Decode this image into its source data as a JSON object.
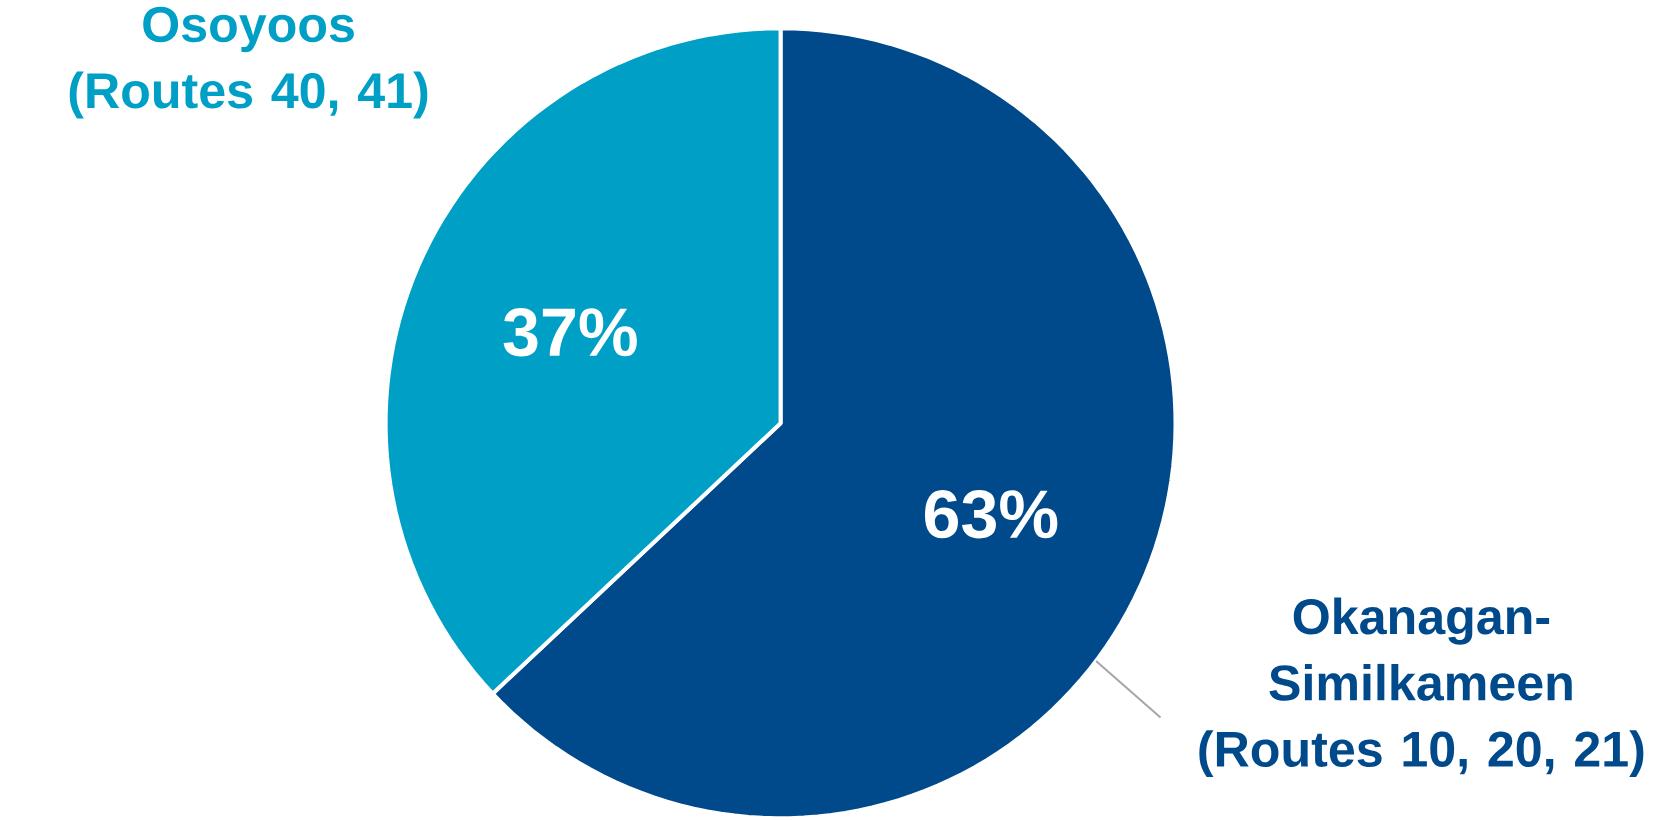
{
  "chart_data": {
    "type": "pie",
    "categories": [
      "Okanagan-Similkameen (Routes 10, 20, 21)",
      "Osoyoos (Routes 40, 41)"
    ],
    "values": [
      63,
      37
    ],
    "colors": [
      "#004a8c",
      "#00a0c6"
    ],
    "value_labels": [
      "63%",
      "37%"
    ]
  }
}
